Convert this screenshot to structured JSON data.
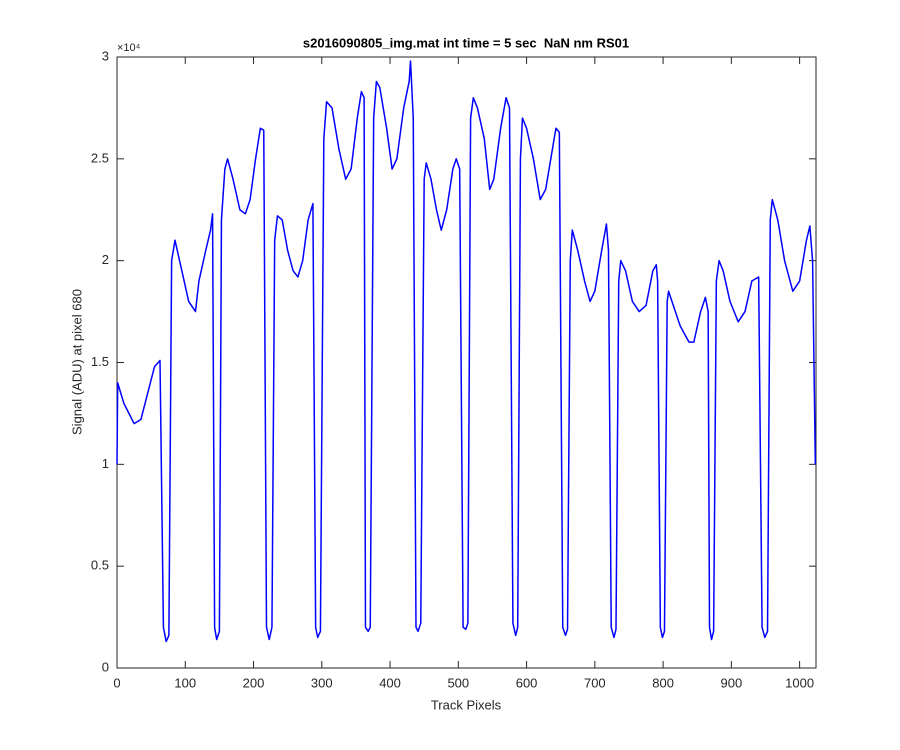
{
  "chart_data": {
    "type": "line",
    "title": "s2016090805_img.mat int time = 5 sec  NaN nm RS01",
    "xlabel": "Track Pixels",
    "ylabel": "Signal (ADU) at pixel 680",
    "y_multiplier_label": "×10⁴",
    "color": "#0000ff",
    "xlim": [
      0,
      1024
    ],
    "ylim": [
      0,
      30000
    ],
    "xticks": [
      0,
      100,
      200,
      300,
      400,
      500,
      600,
      700,
      800,
      900,
      1000
    ],
    "yticks": [
      0,
      {
        "value": 5000,
        "label": "0.5"
      },
      {
        "value": 10000,
        "label": "1"
      },
      {
        "value": 15000,
        "label": "1.5"
      },
      {
        "value": 20000,
        "label": "2"
      },
      {
        "value": 25000,
        "label": "2.5"
      },
      {
        "value": 30000,
        "label": "3"
      }
    ],
    "x": [
      0,
      1,
      10,
      25,
      35,
      45,
      55,
      63,
      68,
      72,
      76,
      80,
      85,
      95,
      105,
      115,
      120,
      130,
      137,
      140,
      143,
      146,
      150,
      153,
      158,
      162,
      170,
      180,
      188,
      195,
      203,
      210,
      215,
      219,
      223,
      227,
      231,
      235,
      242,
      250,
      258,
      265,
      272,
      280,
      287,
      291,
      294,
      298,
      303,
      307,
      315,
      325,
      335,
      343,
      352,
      358,
      362,
      364,
      368,
      371,
      376,
      380,
      385,
      395,
      403,
      410,
      420,
      428,
      430,
      434,
      438,
      441,
      445,
      450,
      453,
      460,
      468,
      475,
      483,
      492,
      497,
      502,
      507,
      511,
      514,
      518,
      522,
      528,
      538,
      546,
      552,
      562,
      570,
      575,
      580,
      584,
      587,
      591,
      594,
      600,
      610,
      620,
      628,
      638,
      643,
      648,
      653,
      657,
      660,
      664,
      667,
      675,
      685,
      693,
      700,
      710,
      717,
      720,
      724,
      728,
      731,
      735,
      738,
      745,
      755,
      765,
      775,
      785,
      790,
      792,
      796,
      799,
      802,
      806,
      808,
      815,
      825,
      838,
      845,
      855,
      862,
      866,
      868,
      871,
      874,
      878,
      882,
      888,
      898,
      910,
      920,
      930,
      940,
      945,
      949,
      953,
      957,
      960,
      968,
      978,
      990,
      1000,
      1010,
      1015,
      1019,
      1023
    ],
    "values": [
      10000,
      14000,
      13000,
      12000,
      12200,
      13500,
      14800,
      15100,
      2000,
      1300,
      1600,
      20000,
      21000,
      19500,
      18000,
      17500,
      19000,
      20500,
      21500,
      22300,
      2000,
      1400,
      1800,
      22000,
      24500,
      25000,
      24000,
      22500,
      22300,
      23000,
      25000,
      26500,
      26400,
      2000,
      1400,
      2000,
      21000,
      22200,
      22000,
      20500,
      19500,
      19200,
      20000,
      22000,
      22800,
      2000,
      1500,
      1800,
      26000,
      27800,
      27500,
      25500,
      24000,
      24500,
      27000,
      28300,
      28000,
      2000,
      1800,
      2000,
      27000,
      28800,
      28500,
      26500,
      24500,
      25000,
      27500,
      28800,
      29800,
      27000,
      2000,
      1800,
      2200,
      24000,
      24800,
      24000,
      22500,
      21500,
      22500,
      24500,
      25000,
      24500,
      2000,
      1900,
      2200,
      27000,
      28000,
      27500,
      26000,
      23500,
      24000,
      26500,
      28000,
      27500,
      2200,
      1600,
      2000,
      25000,
      27000,
      26500,
      25000,
      23000,
      23500,
      25500,
      26500,
      26300,
      2000,
      1600,
      1900,
      20000,
      21500,
      20500,
      19000,
      18000,
      18500,
      20500,
      21800,
      20500,
      2000,
      1500,
      1900,
      19000,
      20000,
      19500,
      18000,
      17500,
      17800,
      19500,
      19800,
      19000,
      2000,
      1500,
      1800,
      18000,
      18500,
      17800,
      16800,
      16000,
      16000,
      17500,
      18200,
      17500,
      2000,
      1400,
      1800,
      19000,
      20000,
      19500,
      18000,
      17000,
      17500,
      19000,
      19200,
      2000,
      1500,
      1800,
      22000,
      23000,
      22000,
      20000,
      18500,
      19000,
      21000,
      21700,
      20000,
      10000
    ]
  }
}
